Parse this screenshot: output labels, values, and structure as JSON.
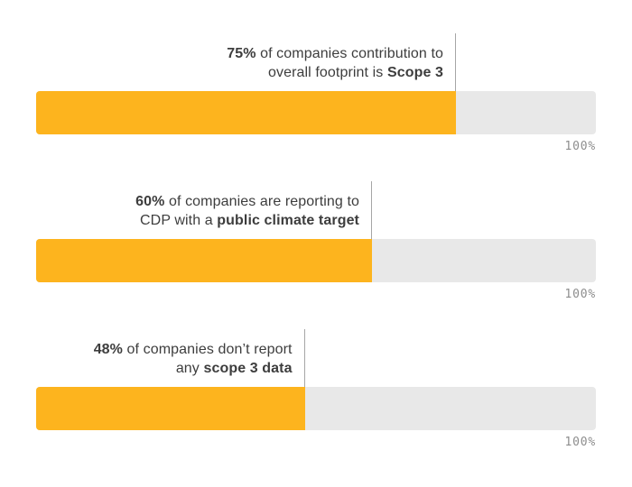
{
  "colors": {
    "bar_fill": "#FDB41E",
    "bar_track": "#E8E8E8",
    "text": "#3D3D3D",
    "axis_label": "#8D8D8D",
    "callout_line": "#A6A6A6",
    "background": "#FFFFFF"
  },
  "chart_data": {
    "type": "bar",
    "orientation": "horizontal",
    "grid": false,
    "legend": false,
    "value_axis": {
      "min": 0,
      "max": 100,
      "max_label": "100%"
    },
    "bars": [
      {
        "value": 75,
        "unit": "%",
        "annotation_text": "75% of companies contribution to overall footprint is Scope 3",
        "annotation_lines": [
          [
            {
              "t": "75%",
              "b": true
            },
            {
              "t": " of companies contribution to"
            }
          ],
          [
            {
              "t": "overall footprint is "
            },
            {
              "t": "Scope 3",
              "b": true
            }
          ]
        ]
      },
      {
        "value": 60,
        "unit": "%",
        "annotation_text": "60% of companies are reporting to CDP with a public climate target",
        "annotation_lines": [
          [
            {
              "t": "60%",
              "b": true
            },
            {
              "t": " of companies are reporting to"
            }
          ],
          [
            {
              "t": "CDP with a "
            },
            {
              "t": "public climate target",
              "b": true
            }
          ]
        ]
      },
      {
        "value": 48,
        "unit": "%",
        "annotation_text": "48% of companies don’t report any scope 3 data",
        "annotation_lines": [
          [
            {
              "t": "48%",
              "b": true
            },
            {
              "t": " of companies don’t report"
            }
          ],
          [
            {
              "t": "any "
            },
            {
              "t": "scope 3 data",
              "b": true
            }
          ]
        ]
      }
    ]
  }
}
